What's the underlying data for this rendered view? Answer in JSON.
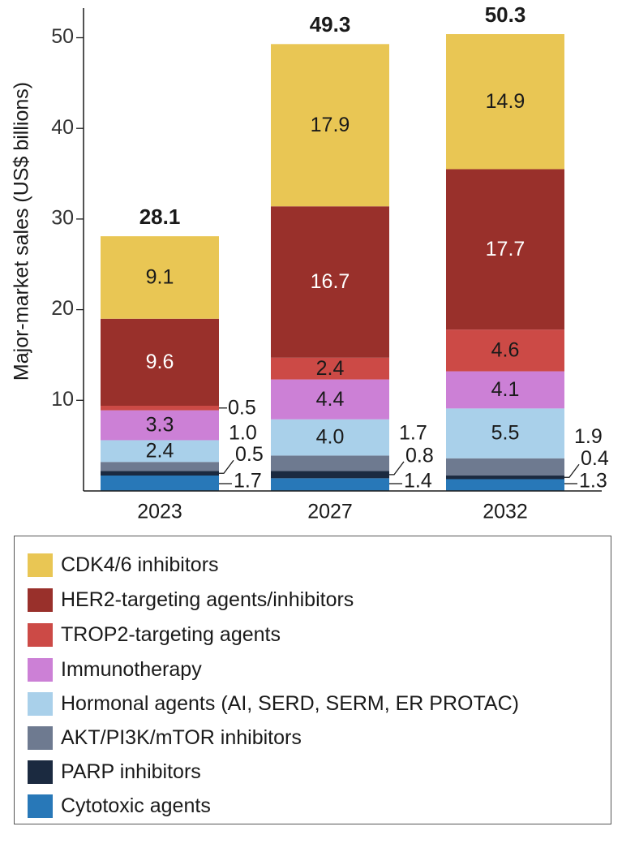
{
  "chart_data": {
    "type": "bar",
    "stacked": true,
    "categories": [
      "2023",
      "2027",
      "2032"
    ],
    "ylabel": "Major-market sales (US$ billions)",
    "xlabel": "",
    "ylim": [
      0,
      52
    ],
    "yticks": [
      10,
      20,
      30,
      40,
      50
    ],
    "totals": [
      "28.1",
      "49.3",
      "50.3"
    ],
    "series": [
      {
        "name": "Cytotoxic agents",
        "color": "#2878b8",
        "values": [
          1.7,
          1.4,
          1.3
        ],
        "labels": [
          "1.7",
          "1.4",
          "1.3"
        ],
        "label_style": "callout-low"
      },
      {
        "name": "PARP inhibitors",
        "color": "#1b2a40",
        "values": [
          0.5,
          0.8,
          0.4
        ],
        "labels": [
          "0.5",
          "0.8",
          "0.4"
        ],
        "label_style": "callout-mid"
      },
      {
        "name": "AKT/PI3K/mTOR inhibitors",
        "color": "#6e7a90",
        "values": [
          1.0,
          1.7,
          1.9
        ],
        "labels": [
          "1.0",
          "1.7",
          "1.9"
        ],
        "label_style": "callout-high"
      },
      {
        "name": "Hormonal agents (AI, SERD, SERM, ER PROTAC)",
        "color": "#a9d0ea",
        "values": [
          2.4,
          4.0,
          5.5
        ],
        "labels": [
          "2.4",
          "4.0",
          "5.5"
        ],
        "label_style": "inside"
      },
      {
        "name": "Immunotherapy",
        "color": "#cc80d6",
        "values": [
          3.3,
          4.4,
          4.1
        ],
        "labels": [
          "3.3",
          "4.4",
          "4.1"
        ],
        "label_style": "inside"
      },
      {
        "name": "TROP2-targeting agents",
        "color": "#cc4a46",
        "values": [
          0.5,
          2.4,
          4.6
        ],
        "labels": [
          "0.5",
          "2.4",
          "4.6"
        ],
        "label_style": "inside-or-callout"
      },
      {
        "name": "HER2-targeting agents/inhibitors",
        "color": "#99302b",
        "values": [
          9.6,
          16.7,
          17.7
        ],
        "labels": [
          "9.6",
          "16.7",
          "17.7"
        ],
        "label_style": "inside-white"
      },
      {
        "name": "CDK4/6 inhibitors",
        "color": "#e9c654",
        "values": [
          9.1,
          17.9,
          14.9
        ],
        "labels": [
          "9.1",
          "17.9",
          "14.9"
        ],
        "label_style": "inside"
      }
    ],
    "legend_position": "bottom",
    "grid": false
  },
  "legend": {
    "items": [
      {
        "label": "CDK4/6 inhibitors",
        "color": "#e9c654"
      },
      {
        "label": "HER2-targeting agents/inhibitors",
        "color": "#99302b"
      },
      {
        "label": "TROP2-targeting agents",
        "color": "#cc4a46"
      },
      {
        "label": "Immunotherapy",
        "color": "#cc80d6"
      },
      {
        "label": "Hormonal agents (AI, SERD, SERM, ER PROTAC)",
        "color": "#a9d0ea"
      },
      {
        "label": "AKT/PI3K/mTOR inhibitors",
        "color": "#6e7a90"
      },
      {
        "label": "PARP inhibitors",
        "color": "#1b2a40"
      },
      {
        "label": "Cytotoxic agents",
        "color": "#2878b8"
      }
    ]
  }
}
